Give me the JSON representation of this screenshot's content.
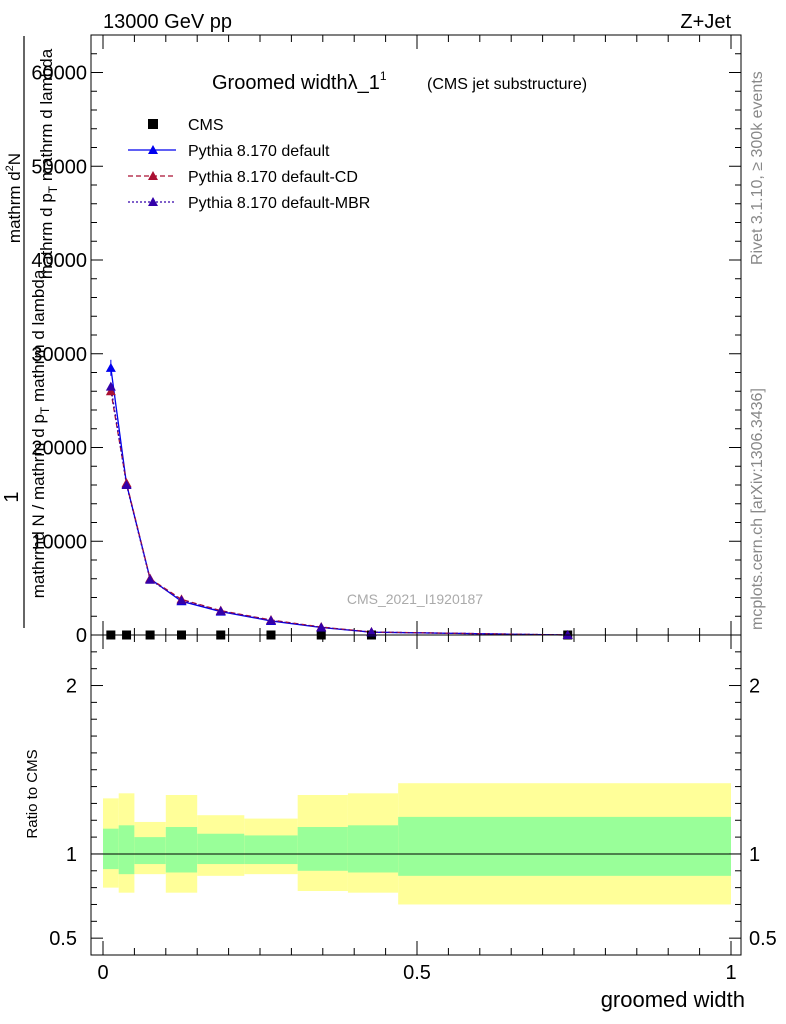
{
  "header": {
    "left": "13000 GeV pp",
    "right": "Z+Jet"
  },
  "side": {
    "rivet": "Rivet 3.1.10, ≥ 300k events",
    "mcplots": "mcplots.cern.ch [arXiv:1306.3436]"
  },
  "chart_data": [
    {
      "type": "line",
      "panel": "main",
      "title": "Groomed widthλ_1",
      "title_sup": "1",
      "subtitle": "(CMS jet substructure)",
      "watermark": "CMS_2021_I1920187",
      "ylabel": "1 / mathrmd N / mathrm d p_T mathrm d lambda  mathrm d^2N / mathrm d p_T mathrm d lambda",
      "ylabel_parts": [
        "1",
        "mathrmd N / mathrm d p",
        "mathrm d",
        "N",
        "2",
        "mathrm d p",
        "T",
        "mathrm d lambda",
        "T",
        "mathrm d lambda"
      ],
      "xlim": [
        0,
        1
      ],
      "ylim": [
        0,
        64000
      ],
      "yticks": [
        0,
        10000,
        20000,
        30000,
        40000,
        50000,
        60000
      ],
      "ytick_labels": [
        "0",
        "10000",
        "20000",
        "30000",
        "40000",
        "50000",
        "60000"
      ],
      "legend_position": "top-left",
      "x": [
        0.0125,
        0.0375,
        0.075,
        0.125,
        0.1875,
        0.2675,
        0.3475,
        0.4275,
        0.74
      ],
      "series": [
        {
          "name": "CMS",
          "marker": "square",
          "color": "#000000",
          "values": [
            0,
            0,
            0,
            0,
            0,
            0,
            0,
            0,
            0
          ]
        },
        {
          "name": "Pythia 8.170 default",
          "marker": "triangle",
          "color": "#0000ee",
          "dash": "",
          "values": [
            28500,
            16100,
            6000,
            3600,
            2500,
            1500,
            800,
            300,
            0
          ]
        },
        {
          "name": "Pythia 8.170 default-CD",
          "marker": "triangle",
          "color": "#aa1133",
          "dash": "5,3",
          "values": [
            26000,
            16200,
            6000,
            3800,
            2600,
            1600,
            850,
            320,
            0
          ]
        },
        {
          "name": "Pythia 8.170 default-MBR",
          "marker": "triangle",
          "color": "#3300aa",
          "dash": "2,2",
          "values": [
            26500,
            16000,
            5900,
            3700,
            2550,
            1550,
            820,
            310,
            0
          ]
        }
      ]
    },
    {
      "type": "area",
      "panel": "ratio",
      "ylabel": "Ratio to CMS",
      "xlabel": "groomed width",
      "xlim": [
        0,
        1
      ],
      "ylim": [
        0.4,
        2.3
      ],
      "xticks": [
        0,
        0.5,
        1
      ],
      "xtick_labels": [
        "0",
        "0.5",
        "1"
      ],
      "yticks": [
        0.5,
        1,
        2
      ],
      "ytick_labels": [
        "0.5",
        "1",
        "2"
      ],
      "bins": [
        {
          "x0": 0.0,
          "x1": 0.025,
          "stat_lo": 0.91,
          "stat_hi": 1.15,
          "tot_lo": 0.8,
          "tot_hi": 1.33
        },
        {
          "x0": 0.025,
          "x1": 0.05,
          "stat_lo": 0.88,
          "stat_hi": 1.17,
          "tot_lo": 0.77,
          "tot_hi": 1.36
        },
        {
          "x0": 0.05,
          "x1": 0.1,
          "stat_lo": 0.94,
          "stat_hi": 1.1,
          "tot_lo": 0.88,
          "tot_hi": 1.19
        },
        {
          "x0": 0.1,
          "x1": 0.15,
          "stat_lo": 0.89,
          "stat_hi": 1.16,
          "tot_lo": 0.77,
          "tot_hi": 1.35
        },
        {
          "x0": 0.15,
          "x1": 0.225,
          "stat_lo": 0.94,
          "stat_hi": 1.12,
          "tot_lo": 0.87,
          "tot_hi": 1.23
        },
        {
          "x0": 0.225,
          "x1": 0.31,
          "stat_lo": 0.94,
          "stat_hi": 1.11,
          "tot_lo": 0.88,
          "tot_hi": 1.21
        },
        {
          "x0": 0.31,
          "x1": 0.39,
          "stat_lo": 0.9,
          "stat_hi": 1.16,
          "tot_lo": 0.78,
          "tot_hi": 1.35
        },
        {
          "x0": 0.39,
          "x1": 0.47,
          "stat_lo": 0.89,
          "stat_hi": 1.17,
          "tot_lo": 0.77,
          "tot_hi": 1.36
        },
        {
          "x0": 0.47,
          "x1": 1.0,
          "stat_lo": 0.87,
          "stat_hi": 1.22,
          "tot_lo": 0.7,
          "tot_hi": 1.42
        }
      ]
    }
  ]
}
